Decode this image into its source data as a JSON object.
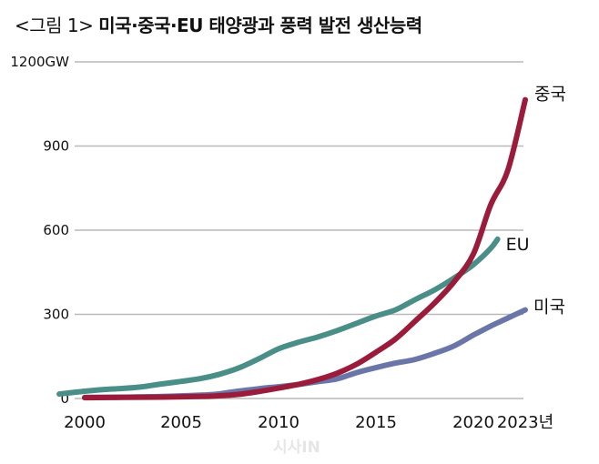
{
  "title": {
    "prefix": "<그림 1>",
    "main": "미국·중국·EU 태양광과 풍력 발전 생산능력"
  },
  "watermark": "시사IN",
  "chart_data": {
    "type": "line",
    "title": "<그림 1> 미국·중국·EU 태양광과 풍력 발전 생산능력",
    "xlabel": "",
    "ylabel": "GW",
    "ylim": [
      0,
      1200
    ],
    "xlim": [
      1999,
      2023
    ],
    "grid": true,
    "legend": "inline-end-labels",
    "y_ticks": [
      {
        "value": 1200,
        "label": "1200GW"
      },
      {
        "value": 900,
        "label": "900"
      },
      {
        "value": 600,
        "label": "600"
      },
      {
        "value": 300,
        "label": "300"
      },
      {
        "value": 0,
        "label": "0"
      }
    ],
    "x_ticks": [
      {
        "value": 2000,
        "label": "2000"
      },
      {
        "value": 2005,
        "label": "2005"
      },
      {
        "value": 2010,
        "label": "2010"
      },
      {
        "value": 2015,
        "label": "2015"
      },
      {
        "value": 2020,
        "label": "2020"
      },
      {
        "value": 2023,
        "label": "2023년"
      }
    ],
    "series": [
      {
        "name": "중국",
        "color": "#9b1b3a",
        "x": [
          2000,
          2002,
          2004,
          2006,
          2007,
          2008,
          2009,
          2010,
          2011,
          2012,
          2013,
          2014,
          2015,
          2016,
          2017,
          2018,
          2019,
          2020,
          2021,
          2022,
          2023
        ],
        "y": [
          3,
          4,
          5,
          7,
          10,
          15,
          25,
          37,
          50,
          67,
          90,
          122,
          165,
          212,
          275,
          340,
          415,
          515,
          690,
          815,
          1065
        ]
      },
      {
        "name": "EU",
        "color": "#4a8f87",
        "x": [
          1998.7,
          2000,
          2001,
          2002,
          2003,
          2004,
          2005,
          2006,
          2007,
          2008,
          2009,
          2010,
          2011,
          2012,
          2013,
          2014,
          2015,
          2016,
          2017,
          2018,
          2019,
          2020,
          2021,
          2021.4
        ],
        "y": [
          16,
          26,
          32,
          36,
          42,
          52,
          61,
          71,
          87,
          110,
          142,
          177,
          200,
          219,
          242,
          268,
          294,
          316,
          352,
          387,
          429,
          477,
          535,
          568
        ]
      },
      {
        "name": "미국",
        "color": "#6b76a8",
        "x": [
          2000,
          2002,
          2004,
          2006,
          2007,
          2008,
          2009,
          2010,
          2011,
          2012,
          2013,
          2014,
          2015,
          2016,
          2017,
          2018,
          2019,
          2020,
          2021,
          2022,
          2023
        ],
        "y": [
          4,
          5,
          7,
          12,
          17,
          27,
          35,
          42,
          50,
          60,
          70,
          92,
          110,
          126,
          139,
          161,
          187,
          226,
          258,
          287,
          316
        ]
      }
    ]
  }
}
